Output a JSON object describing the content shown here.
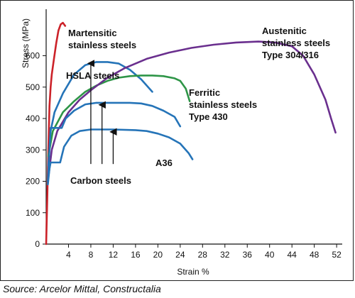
{
  "chart_data": {
    "type": "line",
    "title": "",
    "xlabel": "Strain %",
    "ylabel": "Stress (MPa)",
    "xlim": [
      0,
      53
    ],
    "ylim": [
      0,
      730
    ],
    "xticks": [
      4,
      8,
      12,
      16,
      20,
      24,
      28,
      32,
      36,
      40,
      44,
      48,
      52
    ],
    "yticks": [
      0,
      100,
      200,
      300,
      400,
      500,
      600
    ],
    "grid": false,
    "legend": "none",
    "series": [
      {
        "name": "Martensitic stainless steels",
        "color": "#cc2229",
        "points": [
          [
            0,
            0
          ],
          [
            0.2,
            150
          ],
          [
            0.4,
            300
          ],
          [
            0.6,
            440
          ],
          [
            0.8,
            500
          ],
          [
            1,
            540
          ],
          [
            1.4,
            590
          ],
          [
            1.8,
            640
          ],
          [
            2.2,
            680
          ],
          [
            2.6,
            700
          ],
          [
            3,
            705
          ],
          [
            3.4,
            695
          ]
        ]
      },
      {
        "name": "HSLA steels",
        "color": "#2574b8",
        "points": [
          [
            0.4,
            250
          ],
          [
            0.8,
            360
          ],
          [
            1.5,
            420
          ],
          [
            3,
            480
          ],
          [
            5,
            540
          ],
          [
            7,
            570
          ],
          [
            9,
            580
          ],
          [
            11,
            580
          ],
          [
            13,
            575
          ],
          [
            15,
            555
          ],
          [
            17,
            525
          ],
          [
            19,
            485
          ]
        ]
      },
      {
        "name": "Ferritic stainless steels Type 430",
        "color": "#2e9547",
        "points": [
          [
            0.4,
            280
          ],
          [
            1.2,
            360
          ],
          [
            3,
            420
          ],
          [
            5,
            455
          ],
          [
            7,
            485
          ],
          [
            9,
            505
          ],
          [
            11,
            520
          ],
          [
            13,
            530
          ],
          [
            15,
            535
          ],
          [
            17,
            537
          ],
          [
            19,
            537
          ],
          [
            21,
            535
          ],
          [
            23,
            528
          ],
          [
            24,
            520
          ],
          [
            25,
            495
          ],
          [
            25.7,
            455
          ]
        ]
      },
      {
        "name": "Austenitic stainless steels Type 304/316",
        "color": "#6a2f8e",
        "points": [
          [
            0.3,
            200
          ],
          [
            1,
            300
          ],
          [
            2,
            360
          ],
          [
            4,
            420
          ],
          [
            6,
            460
          ],
          [
            8,
            490
          ],
          [
            11,
            530
          ],
          [
            14,
            560
          ],
          [
            18,
            590
          ],
          [
            22,
            610
          ],
          [
            26,
            625
          ],
          [
            30,
            635
          ],
          [
            34,
            642
          ],
          [
            38,
            645
          ],
          [
            41,
            642
          ],
          [
            44,
            630
          ],
          [
            46,
            600
          ],
          [
            48,
            540
          ],
          [
            50,
            460
          ],
          [
            51,
            400
          ],
          [
            51.8,
            355
          ]
        ]
      },
      {
        "name": "Carbon steels 1",
        "color": "#2574b8",
        "points": [
          [
            0.3,
            200
          ],
          [
            0.6,
            300
          ],
          [
            0.8,
            370
          ],
          [
            2.8,
            370
          ],
          [
            3.5,
            400
          ],
          [
            5,
            425
          ],
          [
            7,
            445
          ],
          [
            9,
            450
          ],
          [
            11,
            450
          ],
          [
            13,
            450
          ],
          [
            15,
            450
          ],
          [
            17,
            448
          ],
          [
            19,
            440
          ],
          [
            21,
            425
          ],
          [
            23,
            405
          ],
          [
            24,
            375
          ]
        ]
      },
      {
        "name": "Carbon steels 2 A36",
        "color": "#2574b8",
        "points": [
          [
            0.3,
            190
          ],
          [
            0.6,
            240
          ],
          [
            0.8,
            260
          ],
          [
            2.5,
            260
          ],
          [
            3.2,
            310
          ],
          [
            4.5,
            345
          ],
          [
            6,
            360
          ],
          [
            8,
            365
          ],
          [
            12,
            365
          ],
          [
            16,
            363
          ],
          [
            18,
            360
          ],
          [
            20,
            352
          ],
          [
            22,
            340
          ],
          [
            24,
            320
          ],
          [
            25.5,
            290
          ],
          [
            26.2,
            270
          ]
        ]
      }
    ],
    "annotations": {
      "martensitic_1": "Martensitic",
      "martensitic_2": "stainless steels",
      "austenitic_1": "Austenitic",
      "austenitic_2": "stainless steels",
      "austenitic_3": "Type 304/316",
      "hsla": "HSLA steels",
      "ferritic_1": "Ferritic",
      "ferritic_2": "stainless steels",
      "ferritic_3": "Type 430",
      "a36": "A36",
      "carbon": "Carbon steels"
    },
    "arrows": [
      {
        "x": 8,
        "from": 255,
        "to": 580
      },
      {
        "x": 10,
        "from": 255,
        "to": 448
      },
      {
        "x": 12,
        "from": 255,
        "to": 362
      }
    ]
  },
  "source": "Source: Arcelor Mittal, Constructalia"
}
